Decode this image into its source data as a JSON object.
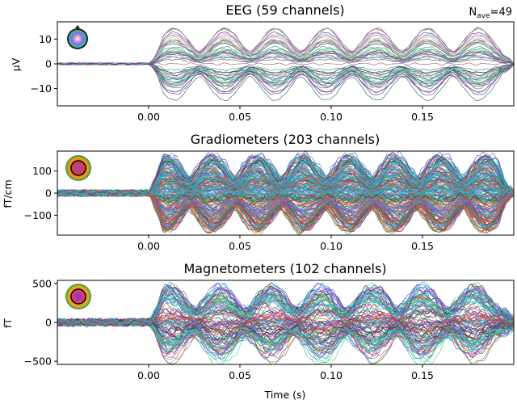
{
  "figure": {
    "nave_prefix": "N",
    "nave_sub": "ave",
    "nave_value": "=49",
    "xlabel": "Time (s)"
  },
  "chart_data": [
    {
      "type": "line",
      "title": "EEG (59 channels)",
      "ylabel": "µV",
      "xlim": [
        -0.05,
        0.2
      ],
      "ylim": [
        -17,
        17
      ],
      "xticks": [
        0.0,
        0.05,
        0.1,
        0.15
      ],
      "xtick_labels": [
        "0.00",
        "0.05",
        "0.10",
        "0.15"
      ],
      "yticks": [
        10,
        0,
        -10
      ],
      "ytick_labels": [
        "10",
        "0",
        "−10"
      ],
      "n_channels": 59,
      "signal": {
        "onset": 0.0,
        "offset": 0.2,
        "frequency_hz": 36,
        "peak_amplitude": 15,
        "noise_amplitude": 0.4
      },
      "palette": [
        "#2ab58a",
        "#1f9e7a",
        "#8fd6a0",
        "#b6e3a5",
        "#e8a0c8",
        "#d05a9c",
        "#c2408a",
        "#3a4aa0",
        "#5a3a8a",
        "#1e6e4e"
      ]
    },
    {
      "type": "line",
      "title": "Gradiometers (203 channels)",
      "ylabel": "fT/cm",
      "xlim": [
        -0.05,
        0.2
      ],
      "ylim": [
        -190,
        190
      ],
      "xticks": [
        0.0,
        0.05,
        0.1,
        0.15
      ],
      "xtick_labels": [
        "0.00",
        "0.05",
        "0.10",
        "0.15"
      ],
      "yticks": [
        100,
        0,
        -100
      ],
      "ytick_labels": [
        "100",
        "0",
        "−100"
      ],
      "n_channels": 203,
      "signal": {
        "onset": 0.0,
        "offset": 0.2,
        "frequency_hz": 40,
        "peak_amplitude": 175,
        "noise_amplitude": 12
      },
      "palette": [
        "#2fb2c8",
        "#3aa8d8",
        "#28c2b0",
        "#2d8fd0",
        "#6a4fd0",
        "#e23a2a",
        "#f06a1a",
        "#2a9a3a",
        "#d03a8a",
        "#444444"
      ]
    },
    {
      "type": "line",
      "title": "Magnetometers (102 channels)",
      "ylabel": "fT",
      "xlim": [
        -0.05,
        0.2
      ],
      "ylim": [
        -540,
        540
      ],
      "xticks": [
        0.0,
        0.05,
        0.1,
        0.15
      ],
      "xtick_labels": [
        "0.00",
        "0.05",
        "0.10",
        "0.15"
      ],
      "yticks": [
        500,
        0,
        -500
      ],
      "ytick_labels": [
        "500",
        "0",
        "−500"
      ],
      "n_channels": 102,
      "signal": {
        "onset": 0.0,
        "offset": 0.2,
        "frequency_hz": 36,
        "peak_amplitude": 450,
        "noise_amplitude": 40
      },
      "palette": [
        "#3a7ae0",
        "#2fe0a0",
        "#28c870",
        "#5a8af0",
        "#e23a3a",
        "#b02a6a",
        "#333333",
        "#7a3ad0",
        "#20b0a0",
        "#d04a2a"
      ]
    }
  ]
}
